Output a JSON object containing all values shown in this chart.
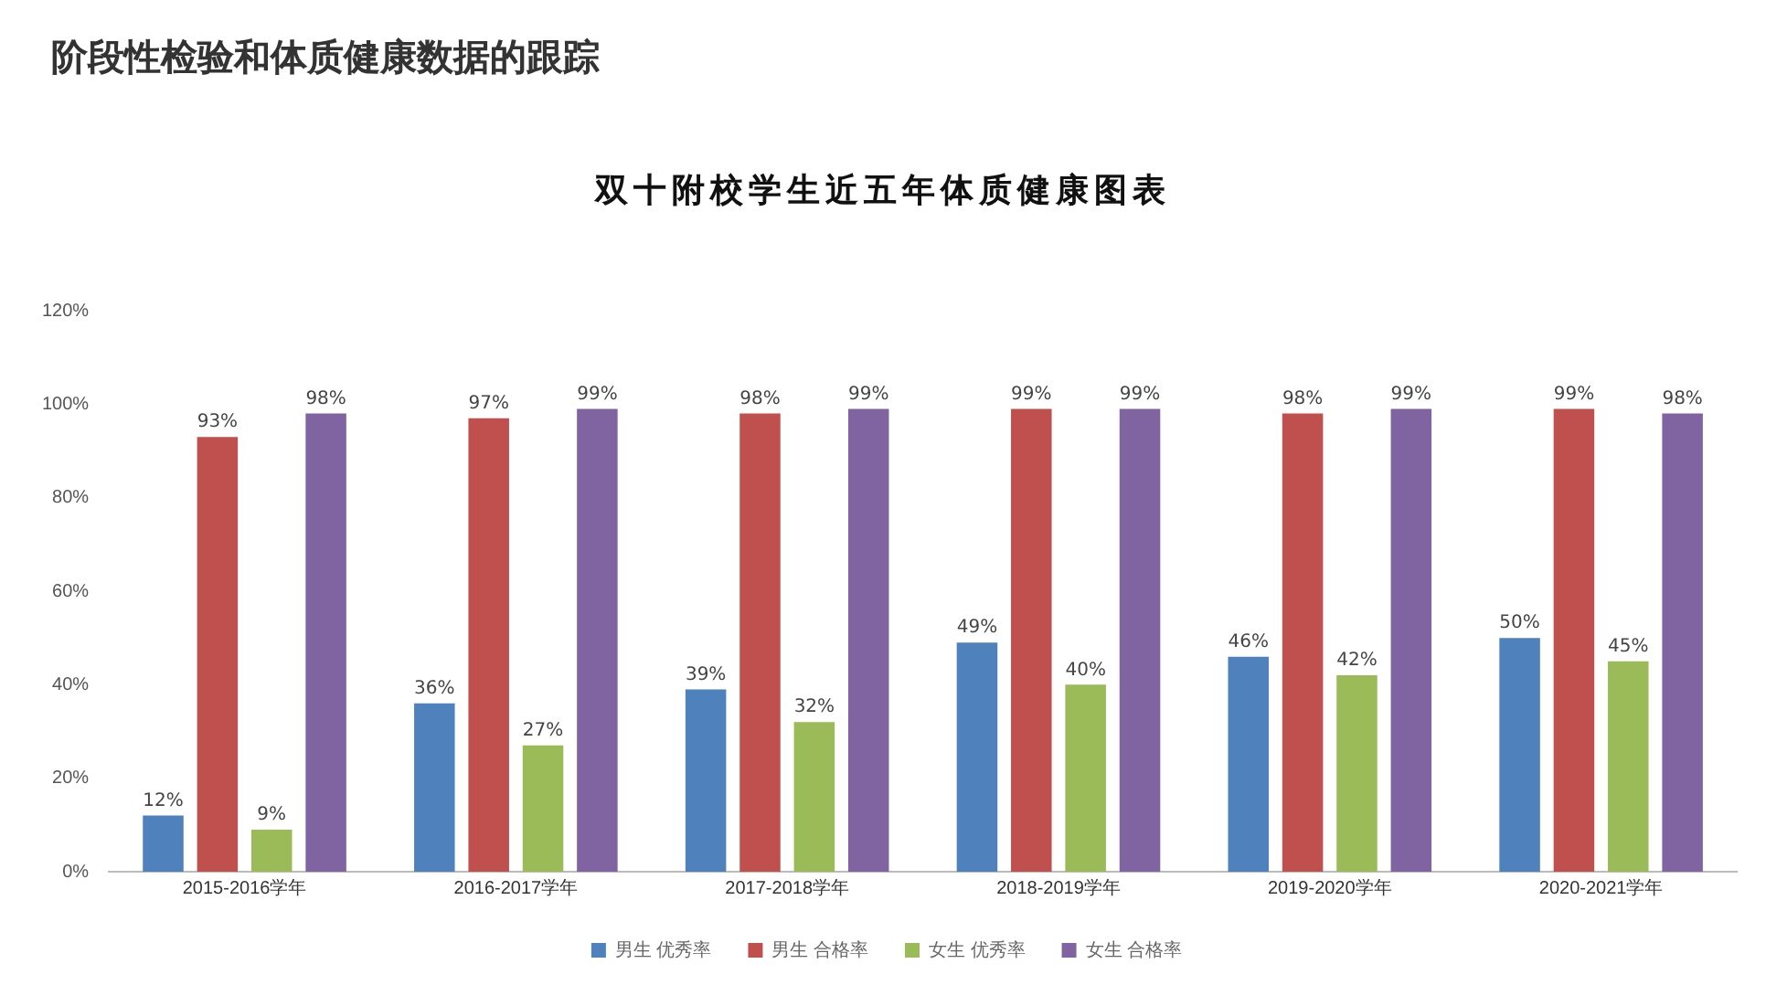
{
  "chart_data": {
    "type": "bar",
    "title": "阶段性检验和体质健康数据的跟踪",
    "subtitle": "双十附校学生近五年体质健康图表",
    "categories": [
      "2015-2016学年",
      "2016-2017学年",
      "2017-2018学年",
      "2018-2019学年",
      "2019-2020学年",
      "2020-2021学年"
    ],
    "series": [
      {
        "name": "男生 优秀率",
        "color": "#4f81bd",
        "values": [
          12,
          36,
          39,
          49,
          46,
          50
        ],
        "value_labels": [
          "12%",
          "36%",
          "39%",
          "49%",
          "46%",
          "50%"
        ]
      },
      {
        "name": "男生 合格率",
        "color": "#c0504d",
        "values": [
          93,
          97,
          98,
          99,
          98,
          99
        ],
        "value_labels": [
          "93%",
          "97%",
          "98%",
          "99%",
          "98%",
          "99%"
        ]
      },
      {
        "name": "女生 优秀率",
        "color": "#9bbb59",
        "values": [
          9,
          27,
          32,
          40,
          42,
          45
        ],
        "value_labels": [
          "9%",
          "27%",
          "32%",
          "40%",
          "42%",
          "45%"
        ]
      },
      {
        "name": "女生 合格率",
        "color": "#8064a2",
        "values": [
          98,
          99,
          99,
          99,
          99,
          98
        ],
        "value_labels": [
          "98%",
          "99%",
          "99%",
          "99%",
          "99%",
          "98%"
        ]
      }
    ],
    "ylim": [
      0,
      120
    ],
    "yticks": [
      {
        "value": 0,
        "label": "0%"
      },
      {
        "value": 20,
        "label": "20%"
      },
      {
        "value": 40,
        "label": "40%"
      },
      {
        "value": 60,
        "label": "60%"
      },
      {
        "value": 80,
        "label": "80%"
      },
      {
        "value": 100,
        "label": "100%"
      },
      {
        "value": 120,
        "label": "120%"
      }
    ],
    "grid": false,
    "legend": "bottom"
  }
}
